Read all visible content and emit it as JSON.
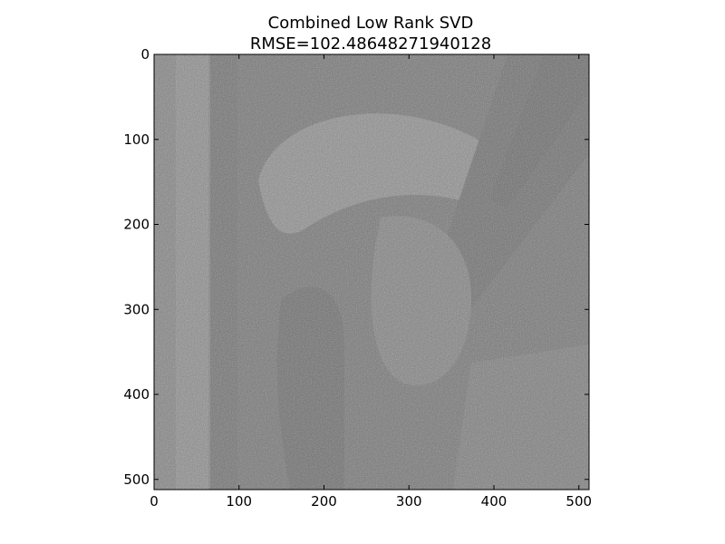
{
  "figure": {
    "title": "Combined Low Rank SVD",
    "subtitle": "RMSE=102.48648271940128"
  },
  "image": {
    "description_tone": "grayscale",
    "x_range": [
      0,
      512
    ],
    "y_range": [
      0,
      512
    ],
    "x_ticks": [
      "0",
      "100",
      "200",
      "300",
      "400",
      "500"
    ],
    "y_ticks": [
      "0",
      "100",
      "200",
      "300",
      "400",
      "500"
    ],
    "x_tick_values": [
      0,
      100,
      200,
      300,
      400,
      500
    ],
    "y_tick_values": [
      0,
      100,
      200,
      300,
      400,
      500
    ],
    "colors": {
      "background": "#ffffff",
      "frame": "#000000",
      "base_gray": "#505050"
    }
  }
}
